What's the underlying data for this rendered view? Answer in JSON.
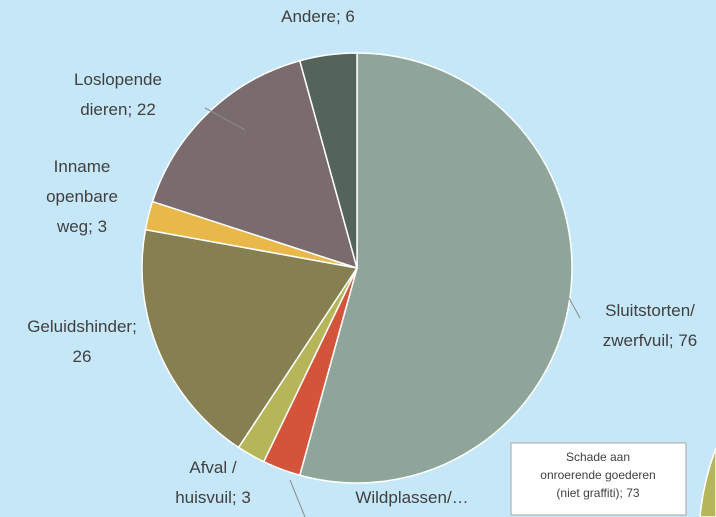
{
  "chart_data": {
    "type": "pie",
    "labels": [
      [
        "Sluitstorten/",
        "zwerfvuil; 76"
      ],
      [
        "Wildplassen/…"
      ],
      [
        "Afval /",
        "huisvuil; 3"
      ],
      [
        "Geluidshinder;",
        "26"
      ],
      [
        "Inname",
        "openbare",
        "weg; 3"
      ],
      [
        "Loslopende",
        "dieren; 22"
      ],
      [
        "Andere; 6"
      ]
    ],
    "values": [
      76,
      4,
      3,
      26,
      3,
      22,
      6
    ],
    "colors": [
      "#8fa59a",
      "#d4533b",
      "#b5b55a",
      "#857f52",
      "#e8b84a",
      "#7a6b6e",
      "#55645a"
    ],
    "annotation": [
      "Schade aan",
      "onroerende goederen",
      "(niet graffiti); 73"
    ]
  }
}
